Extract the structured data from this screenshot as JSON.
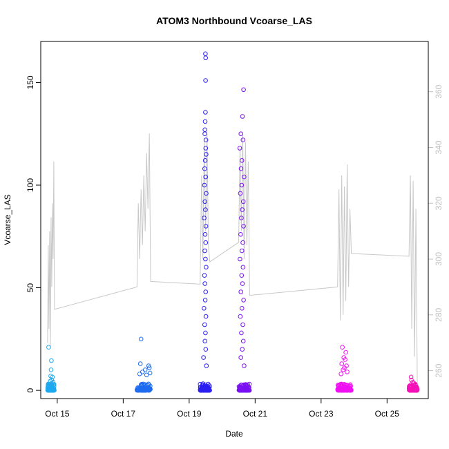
{
  "chart_data": {
    "type": "scatter",
    "title": "ATOM3 Northbound Vcoarse_LAS",
    "xlabel": "Date",
    "ylabel": "Vcoarse_LAS",
    "xlim": [
      "2021-10-14T12:00",
      "2021-10-26T06:00"
    ],
    "ylim": [
      -4,
      170
    ],
    "y2lim": [
      250,
      378
    ],
    "x_ticks": [
      {
        "x": "2021-10-15",
        "label": "Oct 15"
      },
      {
        "x": "2021-10-17",
        "label": "Oct 17"
      },
      {
        "x": "2021-10-19",
        "label": "Oct 19"
      },
      {
        "x": "2021-10-21",
        "label": "Oct 21"
      },
      {
        "x": "2021-10-23",
        "label": "Oct 23"
      },
      {
        "x": "2021-10-25",
        "label": "Oct 25"
      }
    ],
    "y_ticks": [
      0,
      50,
      100,
      150
    ],
    "y2_ticks": [
      260,
      280,
      300,
      320,
      340,
      360
    ],
    "grid": false,
    "clusters": [
      {
        "start": "2021-10-14T17:00",
        "end": "2021-10-14T22:00",
        "color": "#1fa8f0",
        "outliers": [
          [
            0.15,
            21
          ],
          [
            0.55,
            14.5
          ],
          [
            0.5,
            10
          ],
          [
            0.45,
            7
          ],
          [
            0.6,
            5
          ],
          [
            0.7,
            6.5
          ],
          [
            0.4,
            4.5
          ],
          [
            0.8,
            4
          ]
        ]
      },
      {
        "start": "2021-10-17T10:00",
        "end": "2021-10-17T20:00",
        "color": "#1e6cf0",
        "outliers": [
          [
            0.3,
            25
          ],
          [
            0.25,
            13
          ],
          [
            0.85,
            12
          ],
          [
            0.9,
            11
          ],
          [
            0.6,
            10
          ],
          [
            0.4,
            9
          ],
          [
            0.2,
            8
          ],
          [
            0.7,
            7.5
          ],
          [
            0.95,
            8.5
          ]
        ]
      },
      {
        "start": "2021-10-19T08:00",
        "end": "2021-10-19T15:00",
        "color": "#2b1ff0",
        "outliers": [
          [
            0.55,
            164
          ],
          [
            0.57,
            162
          ],
          [
            0.56,
            151
          ],
          [
            0.55,
            135.5
          ],
          [
            0.52,
            131
          ],
          [
            0.5,
            127
          ],
          [
            0.48,
            125
          ],
          [
            0.6,
            122
          ],
          [
            0.58,
            118
          ],
          [
            0.62,
            115
          ],
          [
            0.53,
            112
          ],
          [
            0.47,
            108
          ],
          [
            0.57,
            104
          ],
          [
            0.45,
            100
          ],
          [
            0.63,
            96
          ],
          [
            0.5,
            92
          ],
          [
            0.55,
            88
          ],
          [
            0.42,
            84
          ],
          [
            0.6,
            80
          ],
          [
            0.52,
            76
          ],
          [
            0.58,
            72
          ],
          [
            0.48,
            68
          ],
          [
            0.55,
            64
          ],
          [
            0.62,
            60
          ],
          [
            0.45,
            56
          ],
          [
            0.5,
            52
          ],
          [
            0.57,
            48
          ],
          [
            0.53,
            44
          ],
          [
            0.4,
            40
          ],
          [
            0.6,
            36
          ],
          [
            0.47,
            32
          ],
          [
            0.55,
            28
          ],
          [
            0.5,
            24
          ],
          [
            0.58,
            20
          ],
          [
            0.35,
            16
          ],
          [
            0.65,
            12
          ]
        ]
      },
      {
        "start": "2021-10-20T12:00",
        "end": "2021-10-20T20:00",
        "color": "#7a10f2",
        "outliers": [
          [
            0.45,
            146.5
          ],
          [
            0.35,
            133.5
          ],
          [
            0.2,
            125
          ],
          [
            0.4,
            122
          ],
          [
            0.1,
            118
          ],
          [
            0.3,
            112
          ],
          [
            0.22,
            108
          ],
          [
            0.5,
            104
          ],
          [
            0.28,
            100
          ],
          [
            0.15,
            96
          ],
          [
            0.42,
            92
          ],
          [
            0.33,
            88
          ],
          [
            0.25,
            84
          ],
          [
            0.45,
            80
          ],
          [
            0.18,
            76
          ],
          [
            0.38,
            72
          ],
          [
            0.3,
            68
          ],
          [
            0.12,
            64
          ],
          [
            0.4,
            60
          ],
          [
            0.27,
            56
          ],
          [
            0.35,
            52
          ],
          [
            0.2,
            48
          ],
          [
            0.45,
            44
          ],
          [
            0.3,
            40
          ],
          [
            0.15,
            36
          ],
          [
            0.38,
            32
          ],
          [
            0.25,
            28
          ],
          [
            0.42,
            24
          ],
          [
            0.33,
            20
          ],
          [
            0.2,
            16
          ],
          [
            0.5,
            12
          ]
        ]
      },
      {
        "start": "2021-10-23T12:00",
        "end": "2021-10-23T22:00",
        "color": "#f010f2",
        "outliers": [
          [
            0.35,
            21
          ],
          [
            0.6,
            18.5
          ],
          [
            0.45,
            16
          ],
          [
            0.55,
            15
          ],
          [
            0.3,
            13
          ],
          [
            0.65,
            12
          ],
          [
            0.5,
            11
          ],
          [
            0.4,
            10
          ],
          [
            0.7,
            9
          ],
          [
            0.25,
            8
          ]
        ]
      },
      {
        "start": "2021-10-25T16:00",
        "end": "2021-10-25T22:00",
        "color": "#f510b8",
        "outliers": [
          [
            0.25,
            6.5
          ],
          [
            0.3,
            5
          ],
          [
            0.45,
            4
          ],
          [
            0.6,
            3.5
          ],
          [
            0.75,
            3
          ],
          [
            0.15,
            2.5
          ]
        ]
      }
    ],
    "line_color": "#c8c8c8",
    "line_series_y2": [
      [
        "2021-10-14T17:00",
        270
      ],
      [
        "2021-10-14T17:30",
        305
      ],
      [
        "2021-10-14T18:00",
        275
      ],
      [
        "2021-10-14T18:30",
        310
      ],
      [
        "2021-10-14T19:00",
        268
      ],
      [
        "2021-10-14T19:30",
        315
      ],
      [
        "2021-10-14T20:00",
        290
      ],
      [
        "2021-10-14T20:30",
        320
      ],
      [
        "2021-10-14T21:00",
        300
      ],
      [
        "2021-10-14T21:30",
        335
      ],
      [
        "2021-10-14T22:00",
        282
      ],
      [
        "2021-10-17T10:00",
        290
      ],
      [
        "2021-10-17T11:00",
        320
      ],
      [
        "2021-10-17T12:00",
        300
      ],
      [
        "2021-10-17T13:00",
        325
      ],
      [
        "2021-10-17T14:00",
        305
      ],
      [
        "2021-10-17T15:00",
        330
      ],
      [
        "2021-10-17T16:00",
        310
      ],
      [
        "2021-10-17T17:00",
        338
      ],
      [
        "2021-10-17T18:00",
        318
      ],
      [
        "2021-10-17T19:00",
        345
      ],
      [
        "2021-10-17T20:00",
        292
      ],
      [
        "2021-10-19T08:00",
        291
      ],
      [
        "2021-10-19T09:00",
        330
      ],
      [
        "2021-10-19T10:00",
        300
      ],
      [
        "2021-10-19T11:00",
        342
      ],
      [
        "2021-10-19T12:00",
        310
      ],
      [
        "2021-10-19T13:00",
        345
      ],
      [
        "2021-10-19T14:00",
        305
      ],
      [
        "2021-10-19T15:00",
        299
      ],
      [
        "2021-10-20T12:00",
        306
      ],
      [
        "2021-10-20T13:00",
        340
      ],
      [
        "2021-10-20T14:00",
        310
      ],
      [
        "2021-10-20T15:00",
        345
      ],
      [
        "2021-10-20T16:00",
        300
      ],
      [
        "2021-10-20T17:00",
        342
      ],
      [
        "2021-10-20T18:00",
        305
      ],
      [
        "2021-10-20T19:00",
        335
      ],
      [
        "2021-10-20T20:00",
        287
      ],
      [
        "2021-10-23T12:00",
        290
      ],
      [
        "2021-10-23T13:00",
        325
      ],
      [
        "2021-10-23T14:00",
        278
      ],
      [
        "2021-10-23T15:00",
        330
      ],
      [
        "2021-10-23T16:00",
        280
      ],
      [
        "2021-10-23T17:00",
        326
      ],
      [
        "2021-10-23T18:00",
        285
      ],
      [
        "2021-10-23T19:00",
        334
      ],
      [
        "2021-10-23T20:00",
        290
      ],
      [
        "2021-10-23T21:00",
        318
      ],
      [
        "2021-10-23T22:00",
        302
      ],
      [
        "2021-10-25T16:00",
        301
      ],
      [
        "2021-10-25T17:00",
        330
      ],
      [
        "2021-10-25T18:00",
        275
      ],
      [
        "2021-10-25T19:00",
        328
      ],
      [
        "2021-10-25T20:00",
        265
      ],
      [
        "2021-10-25T21:00",
        318
      ],
      [
        "2021-10-25T22:00",
        255
      ]
    ]
  }
}
